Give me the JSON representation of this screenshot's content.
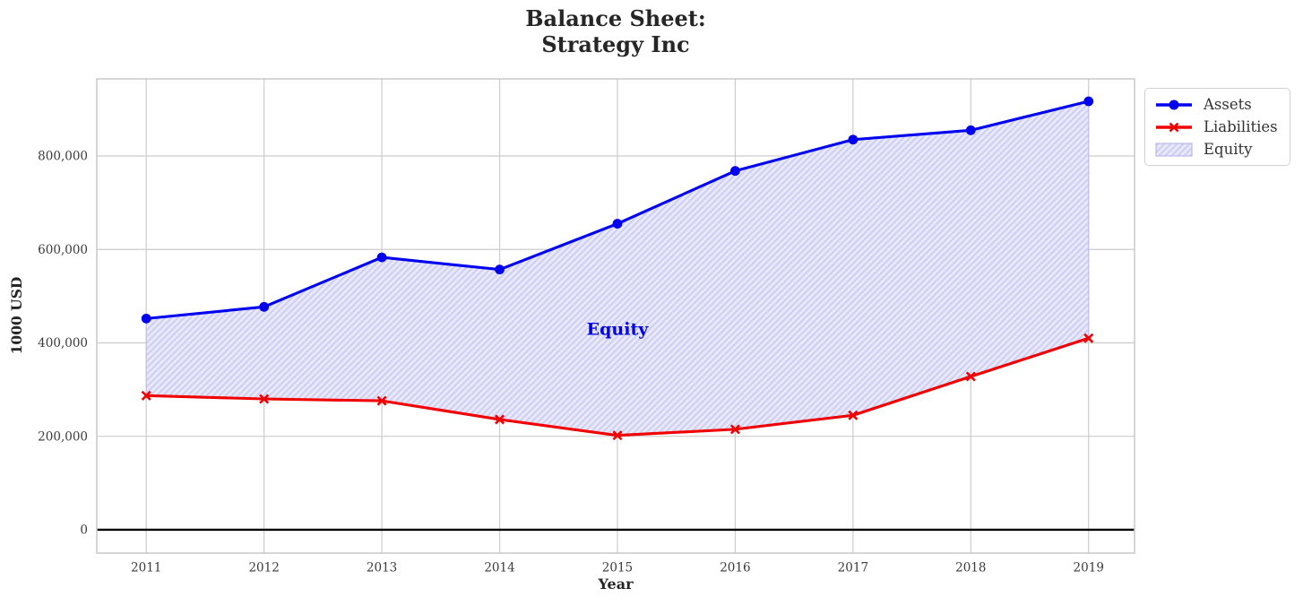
{
  "chart_data": {
    "type": "line",
    "title_lines": [
      "Balance Sheet:",
      "Strategy Inc"
    ],
    "xlabel": "Year",
    "ylabel": "1000 USD",
    "x": [
      2011,
      2012,
      2013,
      2014,
      2015,
      2016,
      2017,
      2018,
      2019
    ],
    "xtick_labels": [
      "2011",
      "2012",
      "2013",
      "2014",
      "2015",
      "2016",
      "2017",
      "2018",
      "2019"
    ],
    "yticks": [
      0,
      200000,
      400000,
      600000,
      800000
    ],
    "ytick_labels": [
      "0",
      "200,000",
      "400,000",
      "600,000",
      "800,000"
    ],
    "xlim": [
      2010.58,
      2019.39
    ],
    "ylim": [
      -50000,
      965000
    ],
    "grid": true,
    "grid_color": "#cccccc",
    "border_color": "#c8c8c8",
    "zero_line_color": "#000000",
    "tick_color": "#3b3b3b",
    "series": [
      {
        "name": "Assets",
        "color": "#0000f0",
        "marker": "circle",
        "values": [
          452000,
          477000,
          583000,
          557000,
          655000,
          768000,
          835000,
          855000,
          917000
        ]
      },
      {
        "name": "Liabilities",
        "color": "#f00000",
        "marker": "x",
        "values": [
          287000,
          280000,
          276000,
          236000,
          202000,
          215000,
          245000,
          328000,
          410000
        ]
      }
    ],
    "area": {
      "name": "Equity",
      "between": [
        "Assets",
        "Liabilities"
      ],
      "base_color": "#e9e9fb",
      "hatch_color": "#cfcff4",
      "edge_color": "#b9b9ec",
      "hatch": "/"
    },
    "annotation": {
      "text": "Equity",
      "x": 2015,
      "y": 430000,
      "color": "#0000ee"
    },
    "legend": {
      "position": "top-right-outside",
      "items": [
        "Assets",
        "Liabilities",
        "Equity"
      ]
    }
  }
}
